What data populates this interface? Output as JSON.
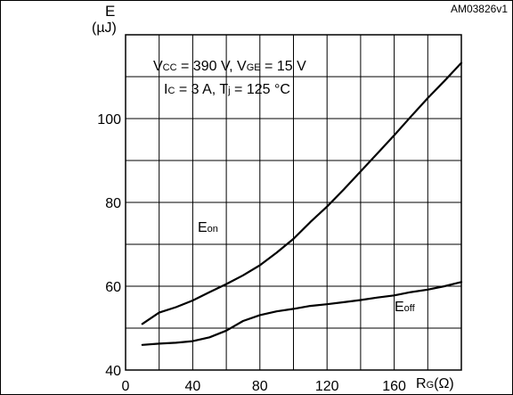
{
  "chart_data": {
    "type": "line",
    "figure_id": "AM03826v1",
    "ylabel": {
      "symbol": "E",
      "unit": "(µJ)"
    },
    "xlabel": {
      "main": "R",
      "sub": "G",
      "unit": "(Ω)"
    },
    "conditions": {
      "line1": {
        "v1": "V",
        "v1_sub": "CC",
        "v1_rest": " = 390 V, V",
        "v2_sub": "GE",
        "v2_rest": " = 15 V"
      },
      "line2": {
        "i": "I",
        "i_sub": "C",
        "i_rest": " = 3 A, T",
        "t_sub": "j",
        "t_rest": " = 125 °C"
      }
    },
    "xlim": [
      0,
      200
    ],
    "ylim": [
      40,
      120
    ],
    "xticks": [
      "0",
      "40",
      "80",
      "120",
      "160"
    ],
    "yticks": [
      "40",
      "60",
      "80",
      "100"
    ],
    "grid": true,
    "series": [
      {
        "name": "Eon",
        "label_main": "E",
        "label_sub": "on",
        "color": "#000000",
        "x": [
          10,
          20,
          30,
          40,
          50,
          60,
          70,
          80,
          90,
          100,
          110,
          120,
          130,
          140,
          150,
          160,
          170,
          180,
          190,
          200
        ],
        "y": [
          51.0,
          53.7,
          55.0,
          56.6,
          58.6,
          60.5,
          62.6,
          65.0,
          68.0,
          71.3,
          75.3,
          79.0,
          83.1,
          87.4,
          91.7,
          96.0,
          100.5,
          104.9,
          109.0,
          113.3
        ]
      },
      {
        "name": "Eoff",
        "label_main": "E",
        "label_sub": "off",
        "color": "#000000",
        "x": [
          10,
          20,
          30,
          40,
          50,
          60,
          70,
          80,
          90,
          100,
          110,
          120,
          130,
          140,
          150,
          160,
          170,
          180,
          190,
          200
        ],
        "y": [
          46.0,
          46.3,
          46.5,
          46.9,
          47.8,
          49.4,
          51.7,
          53.1,
          54.0,
          54.6,
          55.3,
          55.7,
          56.2,
          56.7,
          57.3,
          57.8,
          58.6,
          59.2,
          60.0,
          61.0
        ]
      }
    ]
  }
}
